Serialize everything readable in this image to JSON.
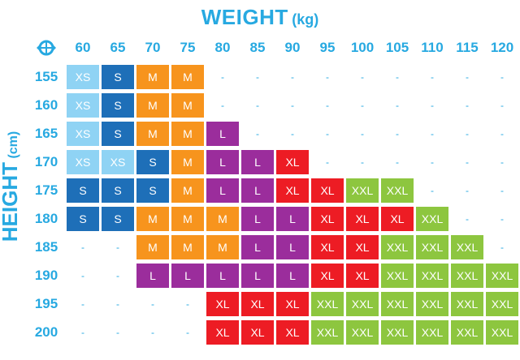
{
  "title": {
    "main": "WEIGHT",
    "unit": "(kg)"
  },
  "ylabel": {
    "main": "HEIGHT",
    "unit": "(cm)"
  },
  "corner_icon": "sizing-logo-icon",
  "colors": {
    "XS": "#8fd3f4",
    "S": "#1e6fb8",
    "M": "#f7941d",
    "L": "#9b2d9c",
    "XL": "#ed1c24",
    "XXL": "#8dc63f",
    "header": "#27a9e1"
  },
  "chart_data": {
    "type": "table",
    "weights": [
      "60",
      "65",
      "70",
      "75",
      "80",
      "85",
      "90",
      "95",
      "100",
      "105",
      "110",
      "115",
      "120"
    ],
    "heights": [
      "155",
      "160",
      "165",
      "170",
      "175",
      "180",
      "185",
      "190",
      "195",
      "200"
    ],
    "rows": [
      [
        "XS",
        "S",
        "M",
        "M",
        "-",
        "-",
        "-",
        "-",
        "-",
        "-",
        "-",
        "-",
        "-"
      ],
      [
        "XS",
        "S",
        "M",
        "M",
        "-",
        "-",
        "-",
        "-",
        "-",
        "-",
        "-",
        "-",
        "-"
      ],
      [
        "XS",
        "S",
        "M",
        "M",
        "L",
        "-",
        "-",
        "-",
        "-",
        "-",
        "-",
        "-",
        "-"
      ],
      [
        "XS",
        "XS",
        "S",
        "M",
        "L",
        "L",
        "XL",
        "-",
        "-",
        "-",
        "-",
        "-",
        "-"
      ],
      [
        "S",
        "S",
        "S",
        "M",
        "L",
        "L",
        "XL",
        "XL",
        "XXL",
        "XXL",
        "-",
        "-",
        "-"
      ],
      [
        "S",
        "S",
        "M",
        "M",
        "M",
        "L",
        "L",
        "XL",
        "XL",
        "XL",
        "XXL",
        "-",
        "-"
      ],
      [
        "-",
        "-",
        "M",
        "M",
        "M",
        "L",
        "L",
        "XL",
        "XL",
        "XXL",
        "XXL",
        "XXL",
        "-"
      ],
      [
        "-",
        "-",
        "L",
        "L",
        "L",
        "L",
        "L",
        "XL",
        "XL",
        "XXL",
        "XXL",
        "XXL",
        "XXL"
      ],
      [
        "-",
        "-",
        "-",
        "-",
        "XL",
        "XL",
        "XL",
        "XXL",
        "XXL",
        "XXL",
        "XXL",
        "XXL",
        "XXL"
      ],
      [
        "-",
        "-",
        "-",
        "-",
        "XL",
        "XL",
        "XL",
        "XXL",
        "XXL",
        "XXL",
        "XXL",
        "XXL",
        "XXL"
      ]
    ]
  }
}
